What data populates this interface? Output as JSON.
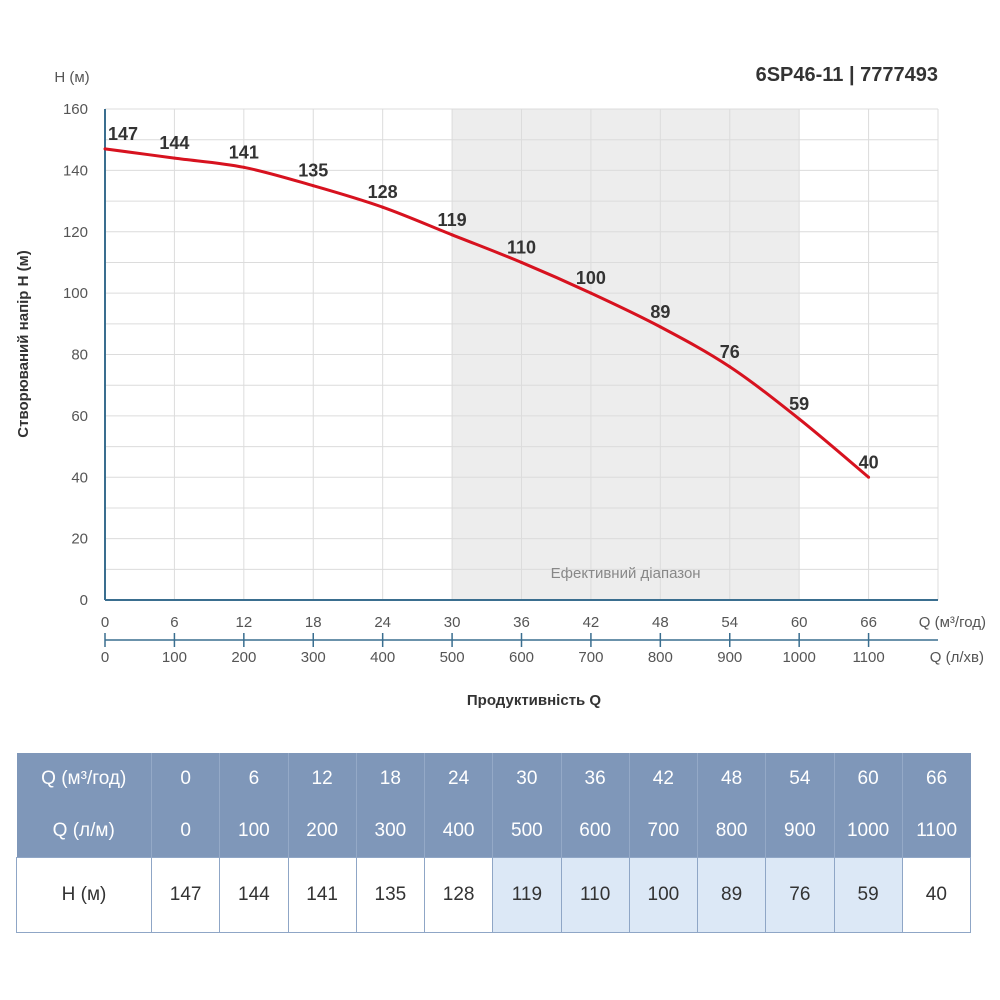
{
  "chart_data": {
    "type": "line",
    "title": "6SP46-11 | 7777493",
    "ylabel": "Створюваний напір H (м)",
    "y_unit": "H (м)",
    "xlabel": "Продуктивність Q",
    "x_unit_primary": "Q (м³/год)",
    "x_unit_secondary": "Q (л/хв)",
    "ylim": [
      0,
      160
    ],
    "xlim": [
      0,
      72
    ],
    "y_ticks": [
      0,
      20,
      40,
      60,
      80,
      100,
      120,
      140,
      160
    ],
    "x": [
      0,
      6,
      12,
      18,
      24,
      30,
      36,
      42,
      48,
      54,
      60,
      66
    ],
    "x_secondary": [
      0,
      100,
      200,
      300,
      400,
      500,
      600,
      700,
      800,
      900,
      1000,
      1100
    ],
    "series": [
      {
        "values": [
          147,
          144,
          141,
          135,
          128,
          119,
          110,
          100,
          89,
          76,
          59,
          40
        ],
        "color": "#d7121f"
      }
    ],
    "efficient_range": {
      "label": "Ефективний діапазон",
      "from": 30,
      "to": 60,
      "color": "#ededed"
    },
    "grid": true
  },
  "table": {
    "row_q_m3h_label": "Q (м³/год)",
    "row_q_lmin_label": "Q (л/м)",
    "row_h_label": "H (м)",
    "q_m3h": [
      "0",
      "6",
      "12",
      "18",
      "24",
      "30",
      "36",
      "42",
      "48",
      "54",
      "60",
      "66"
    ],
    "q_lmin": [
      "0",
      "100",
      "200",
      "300",
      "400",
      "500",
      "600",
      "700",
      "800",
      "900",
      "1000",
      "1100"
    ],
    "h": [
      "147",
      "144",
      "141",
      "135",
      "128",
      "119",
      "110",
      "100",
      "89",
      "76",
      "59",
      "40"
    ],
    "highlighted_columns": [
      5,
      6,
      7,
      8,
      9,
      10
    ],
    "header_color": "#7f97b9",
    "highlight_color": "#dce8f6"
  }
}
